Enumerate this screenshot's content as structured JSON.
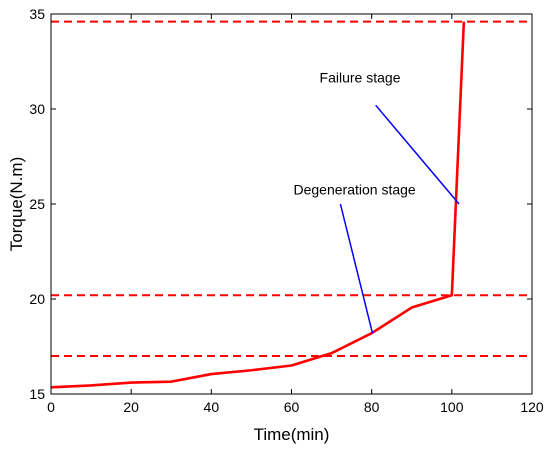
{
  "chart_data": {
    "type": "line",
    "title": "",
    "xlabel": "Time(min)",
    "ylabel": "Torque(N.m)",
    "xlim": [
      0,
      120
    ],
    "ylim": [
      15,
      35
    ],
    "xticks": [
      0,
      20,
      40,
      60,
      80,
      100,
      120
    ],
    "yticks": [
      15,
      20,
      25,
      30,
      35
    ],
    "grid": false,
    "series": [
      {
        "color": "#ff0000",
        "x": [
          0,
          10,
          20,
          30,
          40,
          50,
          60,
          70,
          80,
          90,
          100,
          103
        ],
        "y": [
          15.35,
          15.45,
          15.6,
          15.65,
          16.05,
          16.25,
          16.5,
          17.15,
          18.2,
          19.55,
          20.2,
          34.6
        ]
      }
    ],
    "reference_lines": [
      {
        "y": 17.0,
        "style": "dashed",
        "color": "#ff0000"
      },
      {
        "y": 20.2,
        "style": "dashed",
        "color": "#ff0000"
      },
      {
        "y": 34.6,
        "style": "dashed",
        "color": "#ff0000"
      }
    ],
    "annotations": [
      {
        "text": "Degeneration stage",
        "text_at": [
          60.5,
          25.5
        ],
        "line_from": [
          72.2,
          25.0
        ],
        "line_to": [
          80.2,
          18.2
        ],
        "color": "#0000ff"
      },
      {
        "text": "Failure stage",
        "text_at": [
          67,
          31.4
        ],
        "line_from": [
          81,
          30.2
        ],
        "line_to": [
          101.8,
          25.0
        ],
        "color": "#0000ff"
      }
    ]
  }
}
